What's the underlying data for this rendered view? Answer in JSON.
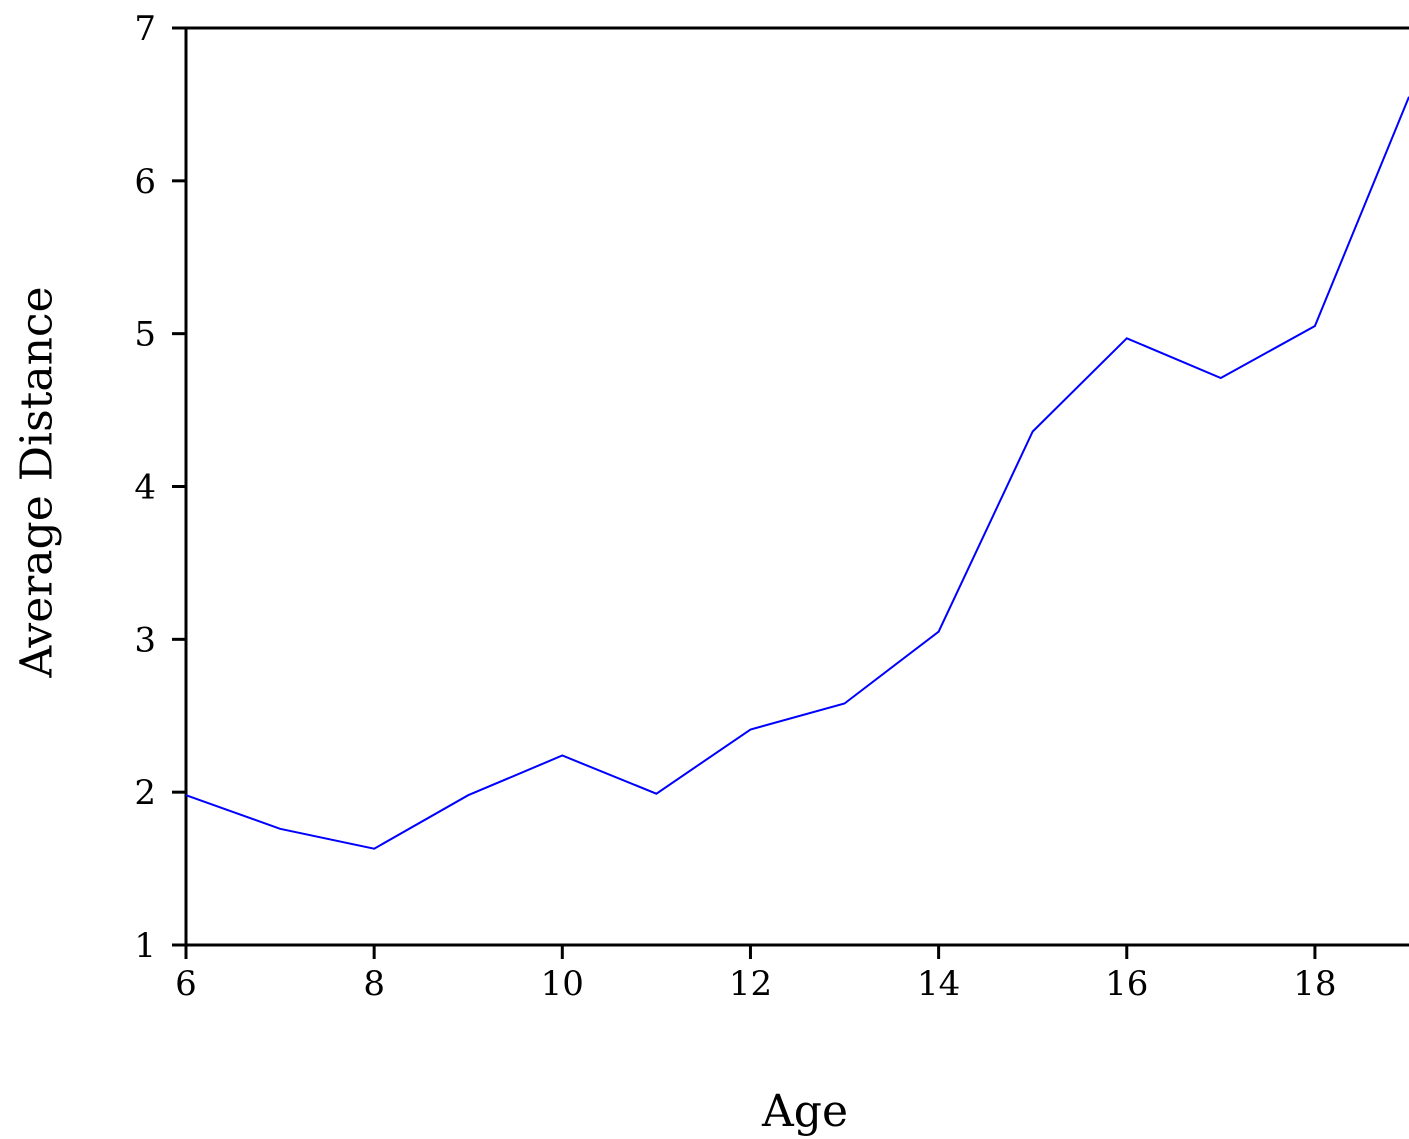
{
  "chart_data": {
    "type": "line",
    "title": "",
    "xlabel": "Age",
    "ylabel": "Average Distance",
    "xlim": [
      6,
      19
    ],
    "ylim": [
      1,
      7
    ],
    "x_ticks": [
      6,
      8,
      10,
      12,
      14,
      16,
      18
    ],
    "y_ticks": [
      1,
      2,
      3,
      4,
      5,
      6,
      7
    ],
    "grid": false,
    "series": [
      {
        "color": "#0000ff",
        "x": [
          6,
          7,
          8,
          9,
          10,
          11,
          12,
          13,
          14,
          15,
          16,
          17,
          18,
          19
        ],
        "y": [
          1.98,
          1.76,
          1.63,
          1.98,
          2.24,
          1.99,
          2.41,
          2.58,
          3.05,
          4.36,
          4.97,
          4.71,
          5.05,
          6.55
        ]
      }
    ]
  }
}
